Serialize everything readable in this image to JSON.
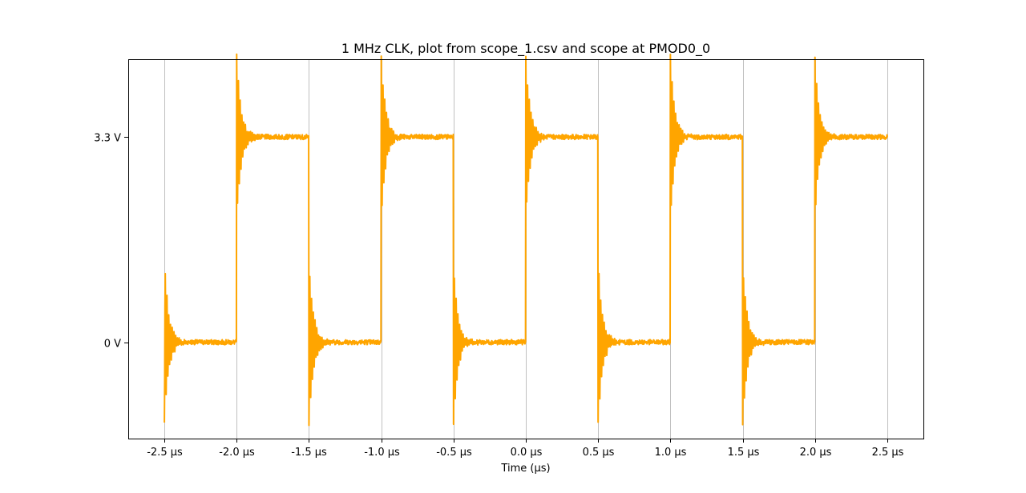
{
  "chart_data": {
    "type": "line",
    "title": "1 MHz CLK, plot from scope_1.csv and scope at PMOD0_0",
    "xlabel": "Time (µs)",
    "ylabel": "",
    "xlim": [
      -2.75,
      2.75
    ],
    "ylim": [
      -1.55,
      4.55
    ],
    "x_ticks": [
      -2.5,
      -2.0,
      -1.5,
      -1.0,
      -0.5,
      0.0,
      0.5,
      1.0,
      1.5,
      2.0,
      2.5
    ],
    "x_tick_labels": [
      "-2.5 µs",
      "-2.0 µs",
      "-1.5 µs",
      "-1.0 µs",
      "-0.5 µs",
      "0.0 µs",
      "0.5 µs",
      "1.0 µs",
      "1.5 µs",
      "2.0 µs",
      "2.5 µs"
    ],
    "y_ticks": [
      0,
      3.3
    ],
    "y_tick_labels": [
      "0 V",
      "3.3 V"
    ],
    "grid": "vertical",
    "line_color": "#ffa500",
    "grid_color": "#b0b0b0",
    "series": [
      {
        "name": "",
        "period_us": 1.0,
        "high_v": 3.3,
        "low_v": 0.0,
        "overshoot_peak_v": 4.6,
        "undershoot_peak_v": -1.3,
        "edges": [
          {
            "t": -2.5,
            "dir": "fall"
          },
          {
            "t": -2.0,
            "dir": "rise"
          },
          {
            "t": -1.5,
            "dir": "fall"
          },
          {
            "t": -1.0,
            "dir": "rise"
          },
          {
            "t": -0.5,
            "dir": "fall"
          },
          {
            "t": 0.0,
            "dir": "rise"
          },
          {
            "t": 0.5,
            "dir": "fall"
          },
          {
            "t": 1.0,
            "dir": "rise"
          },
          {
            "t": 1.5,
            "dir": "fall"
          },
          {
            "t": 2.0,
            "dir": "rise"
          }
        ],
        "start_t": -2.5,
        "end_t": 2.5,
        "initial_v": 1.65
      }
    ]
  }
}
